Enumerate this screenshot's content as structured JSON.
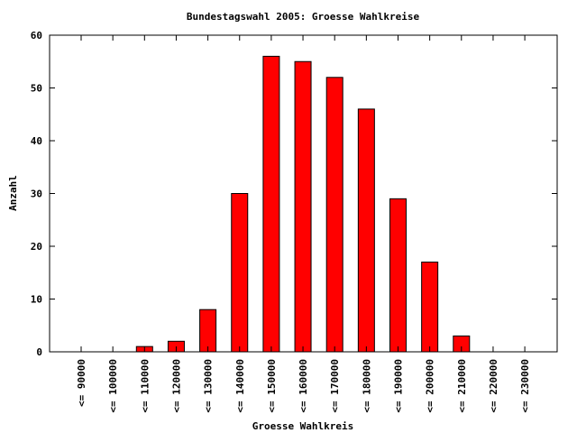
{
  "chart_data": {
    "type": "bar",
    "title": "Bundestagswahl 2005: Groesse Wahlkreise",
    "xlabel": "Groesse Wahlkreis",
    "ylabel": "Anzahl",
    "categories": [
      "<= 90000",
      "<= 100000",
      "<= 110000",
      "<= 120000",
      "<= 130000",
      "<= 140000",
      "<= 150000",
      "<= 160000",
      "<= 170000",
      "<= 180000",
      "<= 190000",
      "<= 200000",
      "<= 210000",
      "<= 220000",
      "<= 230000"
    ],
    "values": [
      0,
      0,
      1,
      2,
      8,
      30,
      56,
      55,
      52,
      46,
      29,
      17,
      3,
      0,
      0
    ],
    "ylim": [
      0,
      60
    ],
    "yticks": [
      0,
      10,
      20,
      30,
      40,
      50,
      60
    ],
    "bar_color": "#ff0000",
    "grid": false,
    "legend": "none"
  }
}
